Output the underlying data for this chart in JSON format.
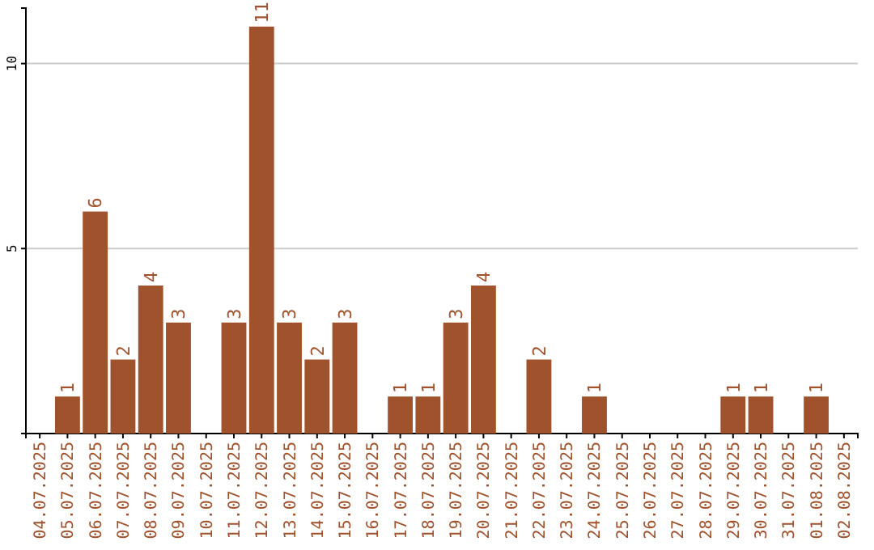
{
  "chart_data": {
    "type": "bar",
    "categories": [
      "04.07.2025",
      "05.07.2025",
      "06.07.2025",
      "07.07.2025",
      "08.07.2025",
      "09.07.2025",
      "10.07.2025",
      "11.07.2025",
      "12.07.2025",
      "13.07.2025",
      "14.07.2025",
      "15.07.2025",
      "16.07.2025",
      "17.07.2025",
      "18.07.2025",
      "19.07.2025",
      "20.07.2025",
      "21.07.2025",
      "22.07.2025",
      "23.07.2025",
      "24.07.2025",
      "25.07.2025",
      "26.07.2025",
      "27.07.2025",
      "28.07.2025",
      "29.07.2025",
      "30.07.2025",
      "31.07.2025",
      "01.08.2025",
      "02.08.2025"
    ],
    "values": [
      0,
      1,
      6,
      2,
      4,
      3,
      0,
      3,
      11,
      3,
      2,
      3,
      0,
      1,
      1,
      3,
      4,
      0,
      2,
      0,
      1,
      0,
      0,
      0,
      0,
      1,
      1,
      0,
      1,
      0
    ],
    "value_labels": [
      null,
      "1",
      "6",
      "2",
      "4",
      "3",
      null,
      "3",
      "11",
      "3",
      "2",
      "3",
      null,
      "1",
      "1",
      "3",
      "4",
      null,
      "2",
      null,
      "1",
      null,
      null,
      null,
      null,
      "1",
      "1",
      null,
      "1",
      null
    ],
    "color": "#a0522d",
    "ylim": [
      0,
      11.5
    ],
    "yticks": [
      {
        "value": 0,
        "label": null
      },
      5,
      10
    ],
    "grid": "y"
  }
}
